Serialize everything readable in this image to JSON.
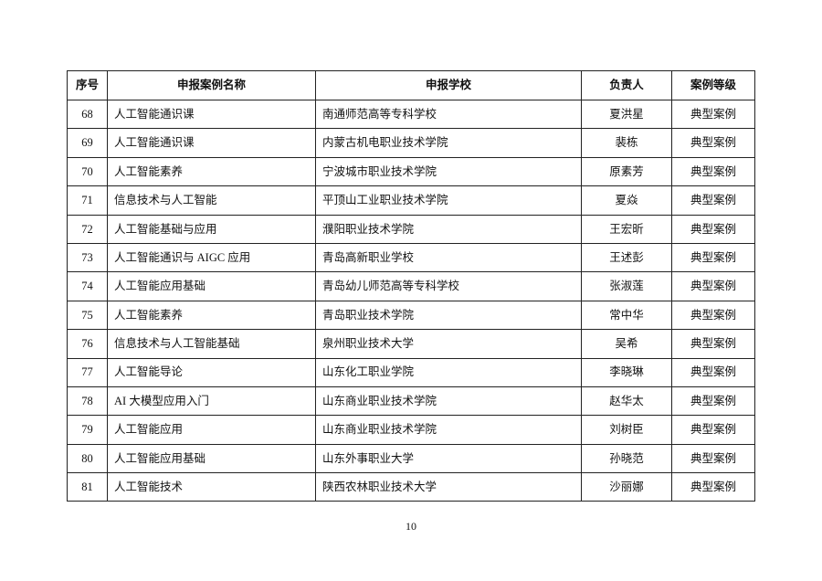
{
  "table": {
    "headers": [
      "序号",
      "申报案例名称",
      "申报学校",
      "负责人",
      "案例等级"
    ],
    "rows": [
      [
        "68",
        "人工智能通识课",
        "南通师范高等专科学校",
        "夏洪星",
        "典型案例"
      ],
      [
        "69",
        "人工智能通识课",
        "内蒙古机电职业技术学院",
        "裴栋",
        "典型案例"
      ],
      [
        "70",
        "人工智能素养",
        "宁波城市职业技术学院",
        "原素芳",
        "典型案例"
      ],
      [
        "71",
        "信息技术与人工智能",
        "平顶山工业职业技术学院",
        "夏焱",
        "典型案例"
      ],
      [
        "72",
        "人工智能基础与应用",
        "濮阳职业技术学院",
        "王宏昕",
        "典型案例"
      ],
      [
        "73",
        "人工智能通识与 AIGC 应用",
        "青岛高新职业学校",
        "王述彭",
        "典型案例"
      ],
      [
        "74",
        "人工智能应用基础",
        "青岛幼儿师范高等专科学校",
        "张淑莲",
        "典型案例"
      ],
      [
        "75",
        "人工智能素养",
        "青岛职业技术学院",
        "常中华",
        "典型案例"
      ],
      [
        "76",
        "信息技术与人工智能基础",
        "泉州职业技术大学",
        "吴希",
        "典型案例"
      ],
      [
        "77",
        "人工智能导论",
        "山东化工职业学院",
        "李晓琳",
        "典型案例"
      ],
      [
        "78",
        "AI 大模型应用入门",
        "山东商业职业技术学院",
        "赵华太",
        "典型案例"
      ],
      [
        "79",
        "人工智能应用",
        "山东商业职业技术学院",
        "刘树臣",
        "典型案例"
      ],
      [
        "80",
        "人工智能应用基础",
        "山东外事职业大学",
        "孙晓范",
        "典型案例"
      ],
      [
        "81",
        "人工智能技术",
        "陕西农林职业技术大学",
        "沙丽娜",
        "典型案例"
      ]
    ]
  },
  "page_number": "10"
}
